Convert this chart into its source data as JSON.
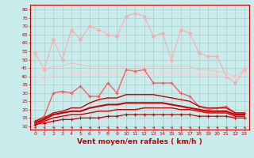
{
  "bg_color": "#c8ecec",
  "grid_color": "#b0cccc",
  "xlabel": "Vent moyen/en rafales ( km/h )",
  "xlabel_color": "#cc0000",
  "xlabel_fontsize": 6.5,
  "tick_color": "#cc0000",
  "yticks": [
    10,
    15,
    20,
    25,
    30,
    35,
    40,
    45,
    50,
    55,
    60,
    65,
    70,
    75,
    80
  ],
  "xticks": [
    0,
    1,
    2,
    3,
    4,
    5,
    6,
    7,
    8,
    9,
    10,
    11,
    12,
    13,
    14,
    15,
    16,
    17,
    18,
    19,
    20,
    21,
    22,
    23
  ],
  "ylim": [
    8,
    83
  ],
  "xlim": [
    -0.5,
    23.5
  ],
  "series": [
    {
      "name": "rafales_max",
      "color": "#ffaaaa",
      "linewidth": 0.8,
      "marker": "D",
      "markersize": 2.0,
      "y": [
        54,
        44,
        62,
        50,
        68,
        62,
        70,
        68,
        65,
        64,
        76,
        78,
        76,
        64,
        66,
        50,
        68,
        66,
        54,
        52,
        52,
        40,
        36,
        44
      ]
    },
    {
      "name": "rafales_moy",
      "color": "#ffbbbb",
      "linewidth": 0.8,
      "marker": null,
      "markersize": 0,
      "y": [
        54,
        44,
        46,
        46,
        48,
        47,
        46,
        46,
        46,
        46,
        46,
        46,
        46,
        46,
        46,
        46,
        46,
        46,
        44,
        44,
        43,
        42,
        40,
        44
      ]
    },
    {
      "name": "rafales_moy2",
      "color": "#ffcccc",
      "linewidth": 0.8,
      "marker": null,
      "markersize": 0,
      "y": [
        40,
        39,
        40,
        41,
        42,
        42,
        42,
        42,
        42,
        42,
        42,
        42,
        42,
        42,
        42,
        42,
        42,
        42,
        41,
        41,
        41,
        40,
        39,
        42
      ]
    },
    {
      "name": "vent_max",
      "color": "#ff5555",
      "linewidth": 0.9,
      "marker": "+",
      "markersize": 3,
      "y": [
        13,
        16,
        30,
        31,
        30,
        34,
        28,
        28,
        36,
        30,
        44,
        43,
        44,
        36,
        36,
        36,
        30,
        28,
        22,
        20,
        21,
        22,
        18,
        18
      ]
    },
    {
      "name": "vent_moy_upper",
      "color": "#cc0000",
      "linewidth": 1.0,
      "marker": null,
      "markersize": 0,
      "y": [
        13,
        15,
        18,
        19,
        21,
        21,
        24,
        26,
        27,
        27,
        29,
        29,
        29,
        29,
        28,
        27,
        26,
        25,
        22,
        21,
        21,
        21,
        18,
        18
      ]
    },
    {
      "name": "vent_moy_mid",
      "color": "#cc0000",
      "linewidth": 1.5,
      "marker": null,
      "markersize": 0,
      "y": [
        12,
        14,
        17,
        18,
        19,
        19,
        21,
        22,
        23,
        23,
        24,
        24,
        24,
        24,
        24,
        23,
        22,
        21,
        20,
        19,
        19,
        19,
        17,
        17
      ]
    },
    {
      "name": "vent_moy_lower",
      "color": "#cc0000",
      "linewidth": 1.0,
      "marker": null,
      "markersize": 0,
      "y": [
        11,
        13,
        15,
        16,
        17,
        17,
        18,
        19,
        19,
        20,
        20,
        20,
        21,
        21,
        21,
        21,
        20,
        20,
        19,
        18,
        18,
        18,
        16,
        16
      ]
    },
    {
      "name": "vent_min",
      "color": "#cc0000",
      "linewidth": 0.9,
      "marker": "+",
      "markersize": 3,
      "y": [
        11,
        12,
        13,
        14,
        14,
        15,
        15,
        15,
        16,
        16,
        17,
        17,
        17,
        17,
        17,
        17,
        17,
        17,
        16,
        16,
        16,
        16,
        15,
        15
      ]
    }
  ]
}
